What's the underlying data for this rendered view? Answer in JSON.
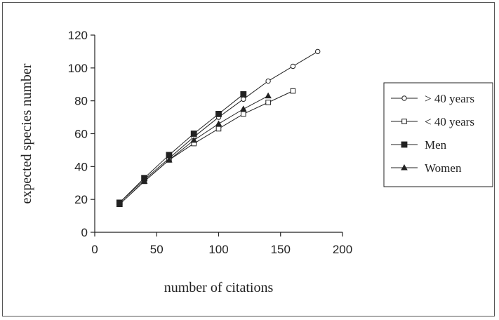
{
  "chart_data": {
    "type": "line",
    "title": "",
    "xlabel": "number of citations",
    "ylabel": "expected species number",
    "xlim": [
      0,
      200
    ],
    "ylim": [
      0,
      120
    ],
    "xticks": [
      "0",
      "50",
      "100",
      "150",
      "200"
    ],
    "yticks": [
      "0",
      "20",
      "40",
      "60",
      "80",
      "100",
      "120"
    ],
    "grid": false,
    "legend_position": "right",
    "series": [
      {
        "name": "> 40 years",
        "marker": "circle-open",
        "x": [
          20,
          40,
          60,
          80,
          100,
          120,
          140,
          160,
          180
        ],
        "y": [
          18,
          32,
          45,
          58,
          70,
          81,
          92,
          101,
          110
        ]
      },
      {
        "name": "< 40 years",
        "marker": "square-open",
        "x": [
          20,
          40,
          60,
          80,
          100,
          120,
          140,
          160
        ],
        "y": [
          17,
          31,
          44,
          54,
          63,
          72,
          79,
          86
        ]
      },
      {
        "name": "Men",
        "marker": "square-filled",
        "x": [
          20,
          40,
          60,
          80,
          100,
          120
        ],
        "y": [
          18,
          33,
          47,
          60,
          72,
          84
        ]
      },
      {
        "name": "Women",
        "marker": "triangle-filled",
        "x": [
          20,
          40,
          60,
          80,
          100,
          120,
          140
        ],
        "y": [
          17,
          31,
          44,
          56,
          66,
          75,
          83
        ]
      }
    ]
  }
}
